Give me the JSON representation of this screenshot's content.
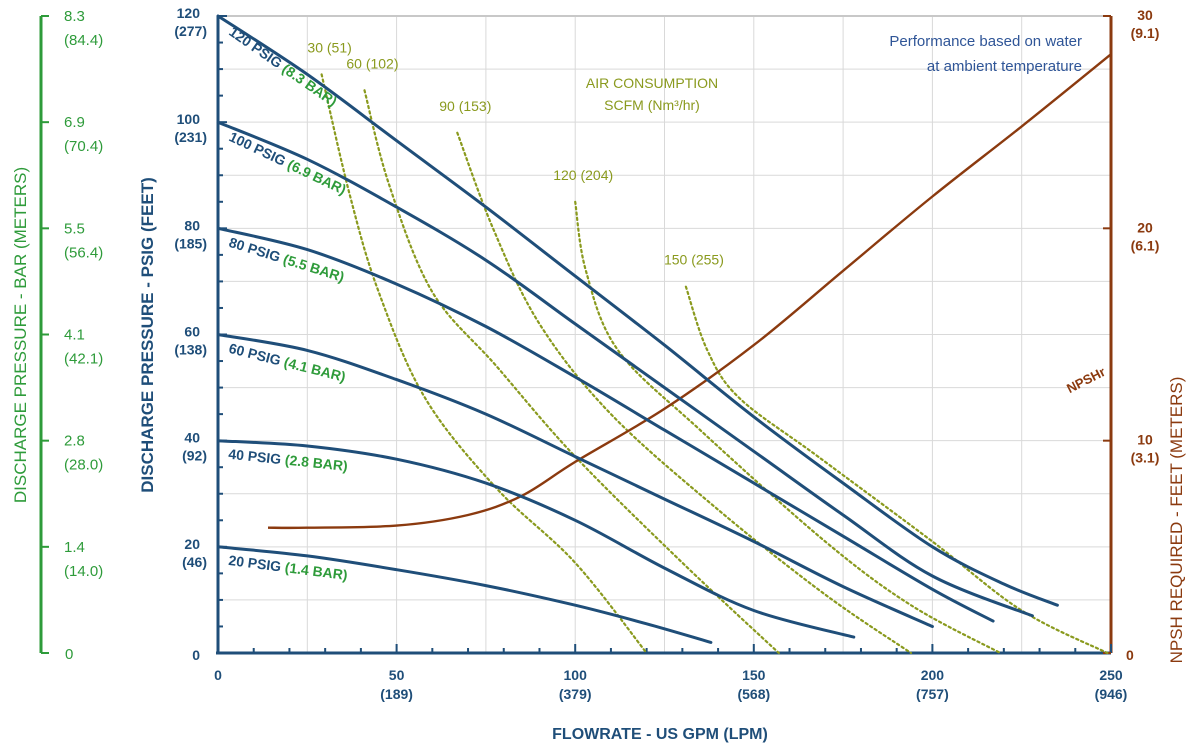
{
  "chart_data": {
    "type": "line",
    "annotation": [
      "Performance based on water",
      "at ambient temperature"
    ],
    "xlabel": "FLOWRATE - US GPM (LPM)",
    "ylabel_left": "DISCHARGE PRESSURE - PSIG (FEET)",
    "ylabel_far_left": "DISCHARGE PRESSURE - BAR (METERS)",
    "ylabel_right": "NPSH REQUIRED - FEET (METERS)",
    "air_title": [
      "AIR CONSUMPTION",
      "SCFM (Nm³/hr)"
    ],
    "xlim": [
      0,
      250
    ],
    "ylim": [
      0,
      120
    ],
    "ylim_right": [
      0,
      30
    ],
    "grid": true,
    "x_ticks": [
      {
        "v": 0,
        "label": "0",
        "sub": ""
      },
      {
        "v": 50,
        "label": "50",
        "sub": "(189)"
      },
      {
        "v": 100,
        "label": "100",
        "sub": "(379)"
      },
      {
        "v": 150,
        "label": "150",
        "sub": "(568)"
      },
      {
        "v": 200,
        "label": "200",
        "sub": "(757)"
      },
      {
        "v": 250,
        "label": "250",
        "sub": "(946)"
      }
    ],
    "y_ticks": [
      {
        "v": 0,
        "label": "0",
        "sub": ""
      },
      {
        "v": 20,
        "label": "20",
        "sub": "(46)"
      },
      {
        "v": 40,
        "label": "40",
        "sub": "(92)"
      },
      {
        "v": 60,
        "label": "60",
        "sub": "(138)"
      },
      {
        "v": 80,
        "label": "80",
        "sub": "(185)"
      },
      {
        "v": 100,
        "label": "100",
        "sub": "(231)"
      },
      {
        "v": 120,
        "label": "120",
        "sub": "(277)"
      }
    ],
    "bar_ticks": [
      {
        "v": 0,
        "label": "0",
        "sub": ""
      },
      {
        "v": 20,
        "label": "1.4",
        "sub": "(14.0)"
      },
      {
        "v": 40,
        "label": "2.8",
        "sub": "(28.0)"
      },
      {
        "v": 60,
        "label": "4.1",
        "sub": "(42.1)"
      },
      {
        "v": 80,
        "label": "5.5",
        "sub": "(56.4)"
      },
      {
        "v": 100,
        "label": "6.9",
        "sub": "(70.4)"
      },
      {
        "v": 120,
        "label": "8.3",
        "sub": "(84.4)"
      }
    ],
    "npsh_ticks": [
      {
        "v": 0,
        "label": "0",
        "sub": ""
      },
      {
        "v": 10,
        "label": "10",
        "sub": "(3.1)"
      },
      {
        "v": 20,
        "label": "20",
        "sub": "(6.1)"
      },
      {
        "v": 30,
        "label": "30",
        "sub": "(9.1)"
      }
    ],
    "pressure_curves": [
      {
        "psig": "20 PSIG",
        "bar": "(1.4 BAR)",
        "points": [
          [
            0,
            20
          ],
          [
            25,
            18.3
          ],
          [
            50,
            15.7
          ],
          [
            75,
            12.7
          ],
          [
            100,
            9
          ],
          [
            120,
            5.5
          ],
          [
            138,
            2
          ]
        ]
      },
      {
        "psig": "40 PSIG",
        "bar": "(2.8 BAR)",
        "points": [
          [
            0,
            40
          ],
          [
            25,
            39
          ],
          [
            50,
            36.5
          ],
          [
            75,
            32
          ],
          [
            100,
            25
          ],
          [
            125,
            16
          ],
          [
            150,
            8
          ],
          [
            178,
            3
          ]
        ]
      },
      {
        "psig": "60 PSIG",
        "bar": "(4.1 BAR)",
        "points": [
          [
            0,
            60
          ],
          [
            25,
            57
          ],
          [
            50,
            51.5
          ],
          [
            75,
            45
          ],
          [
            100,
            37
          ],
          [
            125,
            29
          ],
          [
            150,
            21
          ],
          [
            175,
            12.5
          ],
          [
            200,
            5
          ]
        ]
      },
      {
        "psig": "80 PSIG",
        "bar": "(5.5 BAR)",
        "points": [
          [
            0,
            80
          ],
          [
            25,
            76
          ],
          [
            50,
            69.5
          ],
          [
            75,
            61.5
          ],
          [
            100,
            52
          ],
          [
            125,
            42
          ],
          [
            150,
            32
          ],
          [
            175,
            22
          ],
          [
            200,
            12
          ],
          [
            217,
            6
          ]
        ]
      },
      {
        "psig": "100 PSIG",
        "bar": "(6.9 BAR)",
        "points": [
          [
            0,
            100
          ],
          [
            25,
            93
          ],
          [
            50,
            84
          ],
          [
            75,
            74
          ],
          [
            100,
            62
          ],
          [
            125,
            50
          ],
          [
            150,
            38
          ],
          [
            175,
            26
          ],
          [
            200,
            14.5
          ],
          [
            228,
            7
          ]
        ]
      },
      {
        "psig": "120 PSIG",
        "bar": "(8.3 BAR)",
        "points": [
          [
            0,
            120
          ],
          [
            25,
            109
          ],
          [
            50,
            96.5
          ],
          [
            75,
            84
          ],
          [
            100,
            71
          ],
          [
            125,
            58
          ],
          [
            150,
            44.5
          ],
          [
            175,
            32
          ],
          [
            200,
            20
          ],
          [
            220,
            13
          ],
          [
            235,
            9
          ]
        ]
      }
    ],
    "air_curves": [
      {
        "label": "30 (51)",
        "points": [
          [
            29,
            109
          ],
          [
            37,
            86
          ],
          [
            45,
            68
          ],
          [
            58,
            48
          ],
          [
            78,
            31
          ],
          [
            100,
            17
          ],
          [
            120,
            0
          ]
        ]
      },
      {
        "label": "60 (102)",
        "points": [
          [
            41,
            106
          ],
          [
            48,
            88
          ],
          [
            60,
            68
          ],
          [
            78,
            54
          ],
          [
            100,
            37
          ],
          [
            130,
            17
          ],
          [
            157,
            0
          ]
        ]
      },
      {
        "label": "90 (153)",
        "points": [
          [
            67,
            98
          ],
          [
            77,
            80
          ],
          [
            90,
            62
          ],
          [
            110,
            45
          ],
          [
            140,
            27
          ],
          [
            170,
            11
          ],
          [
            194,
            0
          ]
        ]
      },
      {
        "label": "120 (204)",
        "points": [
          [
            100,
            85
          ],
          [
            103,
            72
          ],
          [
            112,
            57
          ],
          [
            135,
            42
          ],
          [
            170,
            21
          ],
          [
            194,
            9
          ],
          [
            219,
            0
          ]
        ]
      },
      {
        "label": "150 (255)",
        "points": [
          [
            131,
            69
          ],
          [
            137,
            57
          ],
          [
            146,
            48
          ],
          [
            168,
            37
          ],
          [
            200,
            21
          ],
          [
            225,
            8
          ],
          [
            249,
            0
          ]
        ]
      }
    ],
    "npshr": {
      "label": "NPSHr",
      "points": [
        [
          14,
          5.9
        ],
        [
          25,
          5.9
        ],
        [
          50,
          6
        ],
        [
          70,
          6.5
        ],
        [
          85,
          7.4
        ],
        [
          100,
          9
        ],
        [
          125,
          11.5
        ],
        [
          150,
          14.5
        ],
        [
          175,
          18
        ],
        [
          200,
          21.5
        ],
        [
          225,
          24.8
        ],
        [
          250,
          28.2
        ]
      ]
    }
  }
}
